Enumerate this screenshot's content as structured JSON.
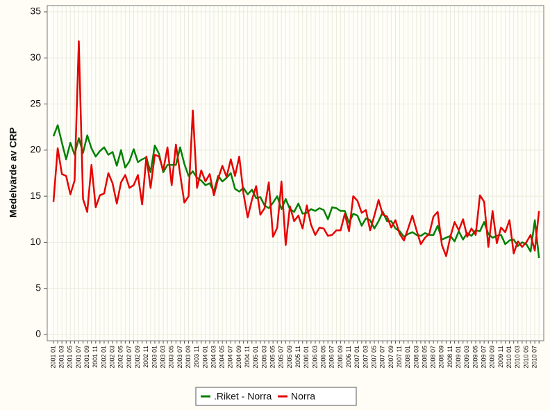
{
  "chart_data": {
    "type": "line",
    "y_label": "Medelvärde av CRP",
    "categories": [
      "2001 01",
      null,
      "2001 03",
      null,
      "2001 05",
      null,
      "2001 07",
      null,
      "2001 09",
      null,
      "2001 11",
      null,
      "2002 01",
      null,
      "2002 03",
      null,
      "2002 05",
      null,
      "2002 07",
      null,
      "2002 09",
      null,
      "2002 11",
      null,
      "2003 01",
      null,
      "2003 03",
      null,
      "2003 05",
      null,
      "2003 07",
      null,
      "2003 09",
      null,
      "2003 11",
      null,
      "2004 01",
      null,
      "2004 03",
      null,
      "2004 05",
      null,
      "2004 07",
      null,
      "2004 09",
      null,
      "2004 11",
      null,
      "2005 01",
      null,
      "2005 03",
      null,
      "2005 05",
      null,
      "2005 07",
      null,
      "2005 09",
      null,
      "2005 11",
      null,
      "2006 01",
      null,
      "2006 03",
      null,
      "2006 05",
      null,
      "2006 07",
      null,
      "2006 09",
      null,
      "2006 11",
      null,
      "2007 01",
      null,
      "2007 03",
      null,
      "2007 05",
      null,
      "2007 07",
      null,
      "2007 09",
      null,
      "2007 11",
      null,
      "2008 01",
      null,
      "2008 03",
      null,
      "2008 05",
      null,
      "2008 07",
      null,
      "2008 09",
      null,
      "2008 11",
      null,
      "2009 01",
      null,
      "2009 03",
      null,
      "2009 05",
      null,
      "2009 07",
      null,
      "2009 09",
      null,
      "2009 11",
      null,
      "2010 01",
      null,
      "2010 03",
      null,
      "2010 05",
      null,
      "2010 07",
      null
    ],
    "series": [
      {
        "name": ".Riket - Norra",
        "color": "#008000",
        "values": [
          21.5,
          22.7,
          20.8,
          19.0,
          20.8,
          19.5,
          21.3,
          19.7,
          21.6,
          20.2,
          19.3,
          19.9,
          20.3,
          19.5,
          19.8,
          18.3,
          20.0,
          18.1,
          18.8,
          20.1,
          18.7,
          19.0,
          19.2,
          17.6,
          20.5,
          19.6,
          17.6,
          18.4,
          18.4,
          18.4,
          20.3,
          18.5,
          17.2,
          17.7,
          17.0,
          16.7,
          16.2,
          16.4,
          15.5,
          17.2,
          16.6,
          17.0,
          17.5,
          15.8,
          15.5,
          15.9,
          15.2,
          15.7,
          14.8,
          14.9,
          14.0,
          13.7,
          14.3,
          15.0,
          13.6,
          14.7,
          13.6,
          13.3,
          14.2,
          13.1,
          13.2,
          13.6,
          13.4,
          13.7,
          13.5,
          12.5,
          13.8,
          13.7,
          13.4,
          13.4,
          12.1,
          13.1,
          12.9,
          11.8,
          12.6,
          12.4,
          11.5,
          12.3,
          13.3,
          12.3,
          12.3,
          11.5,
          11.2,
          10.6,
          10.9,
          11.1,
          10.8,
          10.7,
          11.0,
          10.8,
          10.8,
          11.8,
          10.3,
          10.5,
          10.7,
          10.1,
          11.2,
          10.3,
          11.0,
          10.7,
          11.3,
          11.2,
          12.2,
          10.9,
          10.5,
          10.7,
          10.8,
          9.8,
          10.2,
          10.3,
          9.6,
          10.0,
          9.8,
          9.0,
          12.4,
          8.3
        ]
      },
      {
        "name": "Norra",
        "color": "#e60000",
        "values": [
          14.4,
          20.2,
          17.4,
          17.2,
          15.2,
          16.7,
          31.8,
          14.7,
          13.3,
          18.4,
          13.8,
          15.1,
          15.3,
          17.5,
          16.4,
          14.2,
          16.5,
          17.3,
          15.9,
          16.2,
          17.3,
          14.1,
          19.3,
          15.9,
          19.5,
          19.3,
          17.8,
          20.3,
          16.2,
          20.6,
          17.4,
          14.3,
          15.0,
          24.3,
          15.9,
          17.8,
          16.6,
          17.4,
          15.1,
          16.9,
          18.3,
          17.1,
          19.0,
          17.2,
          19.3,
          15.3,
          12.7,
          14.6,
          16.1,
          13.0,
          13.7,
          16.5,
          10.6,
          11.6,
          16.6,
          9.7,
          13.9,
          12.3,
          12.9,
          11.5,
          14.0,
          11.9,
          10.8,
          11.6,
          11.5,
          10.7,
          10.8,
          11.3,
          11.3,
          13.1,
          11.2,
          15.0,
          14.5,
          13.2,
          13.5,
          11.3,
          12.9,
          14.6,
          13.0,
          12.8,
          11.6,
          12.4,
          10.9,
          10.2,
          11.5,
          12.9,
          11.3,
          9.8,
          10.5,
          10.9,
          12.8,
          13.3,
          9.7,
          8.5,
          10.6,
          12.2,
          11.3,
          12.5,
          10.6,
          11.5,
          10.8,
          15.1,
          14.4,
          9.5,
          13.4,
          9.9,
          11.6,
          11.1,
          12.4,
          8.8,
          10.1,
          9.5,
          10.0,
          10.8,
          9.1,
          13.4
        ]
      }
    ],
    "ylim": [
      0,
      35
    ],
    "yticks": [
      0,
      5,
      10,
      15,
      20,
      25,
      30,
      35
    ],
    "grid": true,
    "legend": "bottom"
  }
}
